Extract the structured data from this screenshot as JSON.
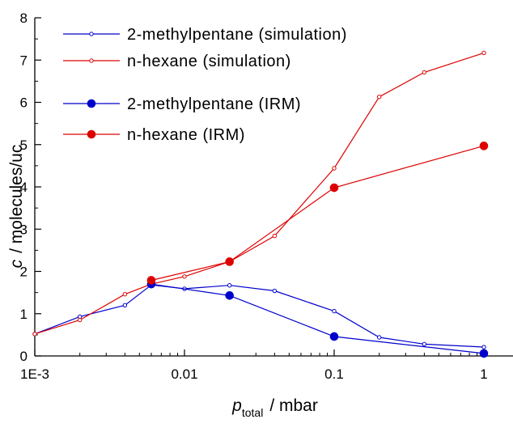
{
  "chart_data": {
    "type": "line",
    "x_scale": "log",
    "xlim": [
      0.001,
      1.5
    ],
    "ylim": [
      0,
      8
    ],
    "grid": false,
    "legend_position": "top-left",
    "xlabel": {
      "main": "p",
      "subscript": "total",
      "unit": "/  mbar"
    },
    "ylabel": {
      "main": "c",
      "rest": "/  molecules/uc"
    },
    "x_ticks": [
      {
        "value": 0.001,
        "label": "1E-3"
      },
      {
        "value": 0.01,
        "label": "0.01"
      },
      {
        "value": 0.1,
        "label": "0.1"
      },
      {
        "value": 1,
        "label": "1"
      }
    ],
    "y_ticks": [
      {
        "value": 0,
        "label": "0"
      },
      {
        "value": 1,
        "label": "1"
      },
      {
        "value": 2,
        "label": "2"
      },
      {
        "value": 3,
        "label": "3"
      },
      {
        "value": 4,
        "label": "4"
      },
      {
        "value": 5,
        "label": "5"
      },
      {
        "value": 6,
        "label": "6"
      },
      {
        "value": 7,
        "label": "7"
      },
      {
        "value": 8,
        "label": "8"
      }
    ],
    "series": [
      {
        "name": "2-methylpentane (simulation)",
        "color": "#0000cc",
        "marker": "open-circle",
        "x": [
          0.001,
          0.002,
          0.004,
          0.006,
          0.01,
          0.02,
          0.04,
          0.1,
          0.2,
          0.4,
          1
        ],
        "y": [
          0.52,
          0.93,
          1.2,
          1.68,
          1.59,
          1.67,
          1.54,
          1.06,
          0.44,
          0.28,
          0.21
        ]
      },
      {
        "name": "n-hexane (simulation)",
        "color": "#dd0000",
        "marker": "open-circle",
        "x": [
          0.001,
          0.002,
          0.004,
          0.006,
          0.01,
          0.02,
          0.04,
          0.1,
          0.2,
          0.4,
          1
        ],
        "y": [
          0.52,
          0.85,
          1.46,
          1.7,
          1.88,
          2.23,
          2.84,
          4.44,
          6.13,
          6.71,
          7.17
        ]
      },
      {
        "name": "2-methylpentane (IRM)",
        "color": "#0000cc",
        "marker": "filled-circle",
        "x": [
          0.006,
          0.02,
          0.1,
          1
        ],
        "y": [
          1.7,
          1.43,
          0.46,
          0.06
        ]
      },
      {
        "name": "n-hexane (IRM)",
        "color": "#dd0000",
        "marker": "filled-circle",
        "x": [
          0.006,
          0.02,
          0.1,
          1
        ],
        "y": [
          1.79,
          2.23,
          3.98,
          4.97
        ]
      }
    ]
  }
}
